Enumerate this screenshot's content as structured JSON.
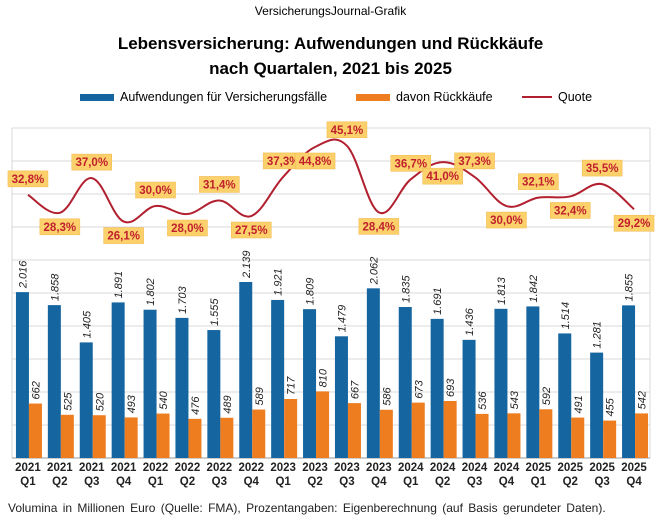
{
  "header": {
    "source": "VersicherungsJournal-Grafik",
    "title_line1": "Lebensversicherung: Aufwendungen und Rückkäufe",
    "title_line2": "nach Quartalen, 2021 bis 2025"
  },
  "legend": {
    "items": [
      {
        "label": "Aufwendungen für Versicherungsfälle",
        "color": "#1565a0"
      },
      {
        "label": "davon Rückkäufe",
        "color": "#ee7d1f"
      },
      {
        "label": "Quote",
        "color": "#b22030"
      }
    ]
  },
  "footnote": "Volumina in Millionen Euro (Quelle: FMA), Prozentangaben: Eigenberechnung (auf Basis gerundeter Daten).",
  "chart_data": {
    "type": "bar",
    "categories": [
      [
        "2021",
        "Q1"
      ],
      [
        "2021",
        "Q2"
      ],
      [
        "2021",
        "Q3"
      ],
      [
        "2021",
        "Q4"
      ],
      [
        "2022",
        "Q1"
      ],
      [
        "2022",
        "Q2"
      ],
      [
        "2022",
        "Q3"
      ],
      [
        "2022",
        "Q4"
      ],
      [
        "2023",
        "Q1"
      ],
      [
        "2023",
        "Q2"
      ],
      [
        "2023",
        "Q3"
      ],
      [
        "2023",
        "Q4"
      ],
      [
        "2024",
        "Q1"
      ],
      [
        "2024",
        "Q2"
      ],
      [
        "2024",
        "Q3"
      ],
      [
        "2024",
        "Q4"
      ],
      [
        "2025",
        "Q1"
      ],
      [
        "2025",
        "Q2"
      ],
      [
        "2025",
        "Q3"
      ],
      [
        "2025",
        "Q4"
      ]
    ],
    "series": [
      {
        "name": "Aufwendungen für Versicherungsfälle",
        "color": "#1565a0",
        "values": [
          2016,
          1858,
          1405,
          1891,
          1802,
          1703,
          1555,
          2139,
          1921,
          1809,
          1479,
          2062,
          1835,
          1691,
          1436,
          1813,
          1842,
          1514,
          1281,
          1855
        ],
        "labels": [
          "2.016",
          "1.858",
          "1.405",
          "1.891",
          "1.802",
          "1.703",
          "1.555",
          "2.139",
          "1.921",
          "1.809",
          "1.479",
          "2.062",
          "1.835",
          "1.691",
          "1.436",
          "1.813",
          "1.842",
          "1.514",
          "1.281",
          "1.855"
        ]
      },
      {
        "name": "davon Rückkäufe",
        "color": "#ee7d1f",
        "values": [
          662,
          525,
          520,
          493,
          540,
          476,
          489,
          589,
          717,
          810,
          667,
          586,
          673,
          693,
          536,
          543,
          592,
          491,
          455,
          542
        ],
        "labels": [
          "662",
          "525",
          "520",
          "493",
          "540",
          "476",
          "489",
          "589",
          "717",
          "810",
          "667",
          "586",
          "673",
          "693",
          "536",
          "543",
          "592",
          "491",
          "455",
          "542"
        ]
      },
      {
        "name": "Quote",
        "type": "line",
        "color": "#b22030",
        "values": [
          32.8,
          28.3,
          37.0,
          26.1,
          30.0,
          28.0,
          31.4,
          27.5,
          37.3,
          44.8,
          45.1,
          28.4,
          36.7,
          41.0,
          37.3,
          30.0,
          32.1,
          32.4,
          35.5,
          29.2
        ],
        "labels": [
          "32,8%",
          "28,3%",
          "37,0%",
          "26,1%",
          "30,0%",
          "28,0%",
          "31,4%",
          "27,5%",
          "37,3%",
          "44,8%",
          "45,1%",
          "28,4%",
          "36,7%",
          "41,0%",
          "37,3%",
          "30,0%",
          "32,1%",
          "32,4%",
          "35,5%",
          "29,2%"
        ],
        "label_bg": "#fcd06a"
      }
    ],
    "grid": true
  }
}
